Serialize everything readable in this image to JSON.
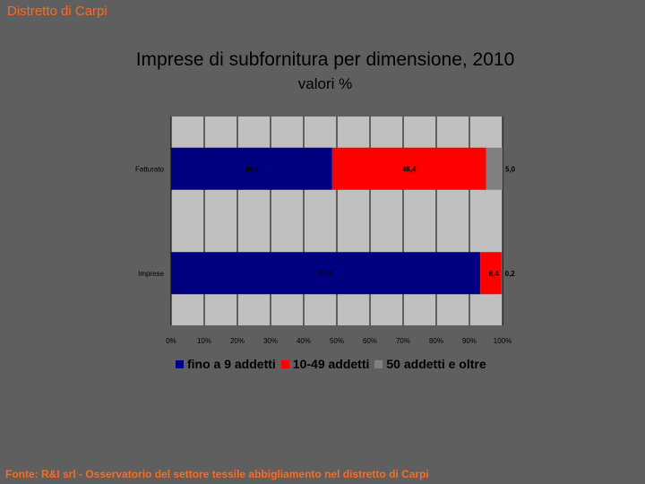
{
  "header": {
    "title": "Distretto di Carpi"
  },
  "footer": {
    "source": "Fonte: R&I srl - Osservatorio del settore tessile abbigliamento nel distretto di Carpi"
  },
  "chart_data": {
    "type": "bar",
    "orientation": "horizontal",
    "stacked": true,
    "title": "Imprese di subfornitura per dimensione, 2010",
    "subtitle": "valori %",
    "categories": [
      "Fatturato",
      "Imprese"
    ],
    "series": [
      {
        "name": "fino a 9 addetti",
        "color": "#000080",
        "values": [
          48.6,
          93.3
        ],
        "labels": [
          "48,6",
          "93,3"
        ]
      },
      {
        "name": "10-49 addetti",
        "color": "#ff0000",
        "values": [
          46.4,
          6.4
        ],
        "labels": [
          "46,4",
          "6,4"
        ]
      },
      {
        "name": "50 addetti e oltre",
        "color": "#808080",
        "values": [
          5.0,
          0.2
        ],
        "labels": [
          "5,0",
          "0,2"
        ]
      }
    ],
    "xlim": [
      0,
      100
    ],
    "x_ticks": [
      "0%",
      "10%",
      "20%",
      "30%",
      "40%",
      "50%",
      "60%",
      "70%",
      "80%",
      "90%",
      "100%"
    ],
    "grid": true,
    "legend": "bottom"
  }
}
